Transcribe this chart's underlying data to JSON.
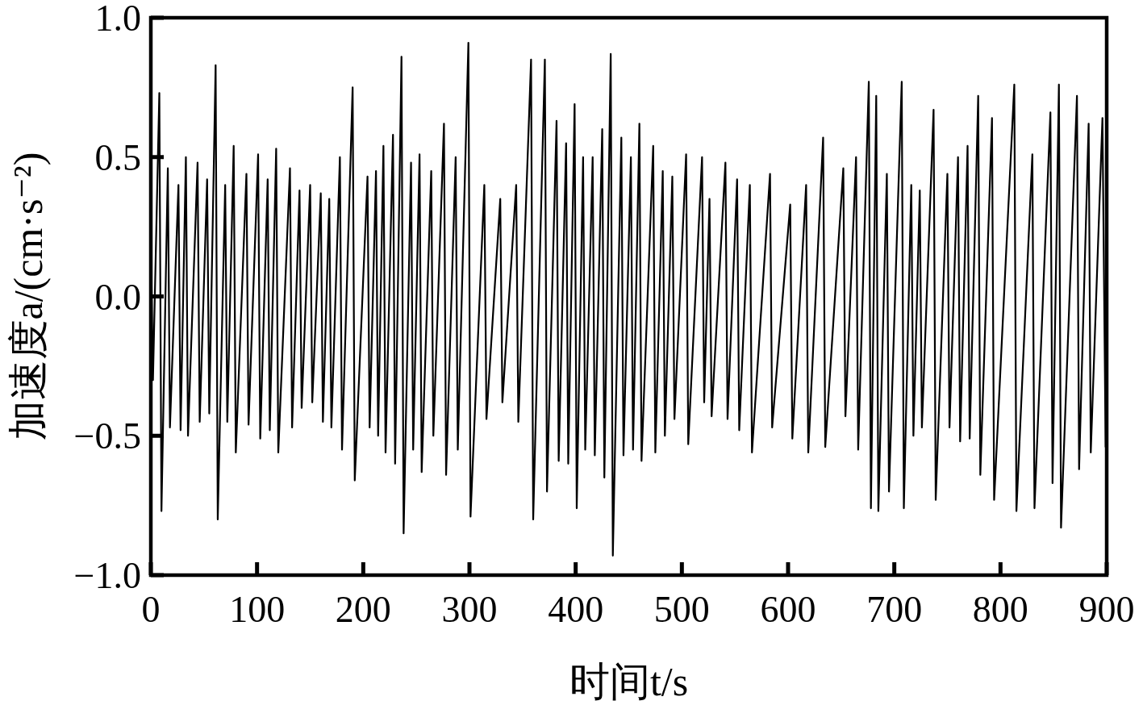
{
  "chart_data": {
    "type": "line",
    "xlabel": "时间t/s",
    "ylabel": "加速度a/(cm·s⁻²)",
    "color": "#000000",
    "xlim": [
      0,
      900
    ],
    "ylim": [
      -1,
      1
    ],
    "xticks": [
      0,
      100,
      200,
      300,
      400,
      500,
      600,
      700,
      800,
      900
    ],
    "yticks": [
      {
        "value": -1,
        "label": "−1.0"
      },
      {
        "value": -0.5,
        "label": "−0.5"
      },
      {
        "value": 0,
        "label": "0.0"
      },
      {
        "value": 0.5,
        "label": "0.5"
      },
      {
        "value": 1,
        "label": "1.0"
      }
    ],
    "x": [
      0,
      2,
      8,
      10,
      16,
      18,
      26,
      28,
      33,
      35,
      44,
      46,
      53,
      55,
      61,
      63,
      70,
      72,
      78,
      80,
      90,
      92,
      101,
      103,
      110,
      112,
      118,
      120,
      131,
      133,
      140,
      142,
      150,
      152,
      160,
      162,
      168,
      170,
      178,
      180,
      190,
      192,
      204,
      206,
      212,
      214,
      219,
      221,
      228,
      230,
      236,
      238,
      245,
      247,
      253,
      255,
      264,
      266,
      276,
      278,
      287,
      289,
      299,
      301,
      314,
      316,
      329,
      331,
      344,
      346,
      358,
      360,
      371,
      373,
      382,
      384,
      391,
      393,
      399,
      401,
      407,
      409,
      416,
      418,
      425,
      427,
      433,
      435,
      443,
      445,
      452,
      454,
      460,
      462,
      473,
      475,
      482,
      484,
      491,
      493,
      504,
      506,
      519,
      521,
      526,
      528,
      541,
      543,
      552,
      554,
      564,
      566,
      583,
      585,
      602,
      604,
      617,
      619,
      633,
      635,
      652,
      654,
      664,
      666,
      676,
      678,
      683,
      685,
      693,
      695,
      707,
      709,
      716,
      718,
      724,
      726,
      737,
      739,
      750,
      752,
      760,
      762,
      769,
      771,
      779,
      781,
      792,
      794,
      813,
      815,
      830,
      832,
      847,
      849,
      855,
      857,
      872,
      874,
      883,
      885,
      896,
      899
    ],
    "values": [
      0.22,
      -0.3,
      0.73,
      -0.77,
      0.46,
      -0.47,
      0.4,
      -0.48,
      0.5,
      -0.5,
      0.48,
      -0.45,
      0.42,
      -0.42,
      0.83,
      -0.8,
      0.4,
      -0.45,
      0.54,
      -0.56,
      0.44,
      -0.46,
      0.51,
      -0.51,
      0.42,
      -0.48,
      0.53,
      -0.56,
      0.46,
      -0.47,
      0.38,
      -0.4,
      0.4,
      -0.38,
      0.37,
      -0.45,
      0.35,
      -0.47,
      0.5,
      -0.55,
      0.75,
      -0.66,
      0.43,
      -0.47,
      0.45,
      -0.5,
      0.54,
      -0.56,
      0.58,
      -0.6,
      0.86,
      -0.85,
      0.48,
      -0.55,
      0.51,
      -0.63,
      0.45,
      -0.5,
      0.62,
      -0.64,
      0.5,
      -0.55,
      0.91,
      -0.79,
      0.4,
      -0.44,
      0.35,
      -0.38,
      0.4,
      -0.45,
      0.85,
      -0.8,
      0.85,
      -0.7,
      0.63,
      -0.59,
      0.55,
      -0.6,
      0.69,
      -0.76,
      0.5,
      -0.55,
      0.5,
      -0.57,
      0.6,
      -0.65,
      0.87,
      -0.93,
      0.57,
      -0.57,
      0.5,
      -0.55,
      0.62,
      -0.59,
      0.54,
      -0.56,
      0.45,
      -0.5,
      0.43,
      -0.44,
      0.51,
      -0.53,
      0.5,
      -0.38,
      0.35,
      -0.43,
      0.48,
      -0.44,
      0.42,
      -0.48,
      0.4,
      -0.56,
      0.44,
      -0.47,
      0.33,
      -0.51,
      0.4,
      -0.56,
      0.57,
      -0.54,
      0.46,
      -0.43,
      0.5,
      -0.55,
      0.77,
      -0.76,
      0.72,
      -0.77,
      0.44,
      -0.7,
      0.77,
      -0.76,
      0.4,
      -0.5,
      0.38,
      -0.47,
      0.67,
      -0.73,
      0.44,
      -0.47,
      0.5,
      -0.52,
      0.54,
      -0.51,
      0.72,
      -0.64,
      0.64,
      -0.73,
      0.76,
      -0.77,
      0.51,
      -0.76,
      0.66,
      -0.67,
      0.76,
      -0.83,
      0.72,
      -0.62,
      0.62,
      -0.56,
      0.64,
      -0.54
    ]
  }
}
